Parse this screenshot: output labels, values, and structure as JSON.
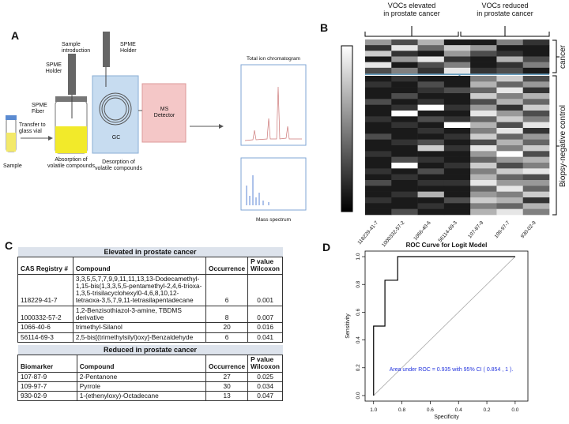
{
  "panel_a": {
    "label": "A",
    "sample": "Sample",
    "transfer": "Transfer to\nglass vial",
    "spme_fiber": "SPME\nFiber",
    "spme_holder_1": "SPME\nHolder",
    "sample_introduction": "Sample\nintroduction",
    "spme_holder_2": "SPME\nHolder",
    "absorption": "Absorption of\nvolatile compounds",
    "gc": "GC",
    "desorption": "Desorption of\nvolatile compounds",
    "ms_detector": "MS\nDetector",
    "chromatogram_title": "Total ion chromatogram",
    "mass_spectrum": "Mass spectrum"
  },
  "panel_b": {
    "label": "B",
    "elevated_header": "VOCs elevated\nin prostate cancer",
    "reduced_header": "VOCs reduced\nin prostate cancer",
    "cancer_label": "cancer",
    "control_label": "Biopsy-negative  control",
    "columns": [
      "118229-41-7",
      "1000332-57-2",
      "1066-40-6",
      "56114-69-3",
      "107-87-9",
      "109-97-7",
      "930-02-9"
    ],
    "cancer_rows": 6,
    "values": [
      [
        0.6,
        0.3,
        0.7,
        0.1,
        0.1,
        0.5,
        0.2
      ],
      [
        0.2,
        0.9,
        0.4,
        0.8,
        0.6,
        0.1,
        0.1
      ],
      [
        0.8,
        0.2,
        0.1,
        0.6,
        0.3,
        0.2,
        0.1
      ],
      [
        0.1,
        0.6,
        0.9,
        0.2,
        0.1,
        0.7,
        0.3
      ],
      [
        0.9,
        0.1,
        0.3,
        0.5,
        0.1,
        0.2,
        0.5
      ],
      [
        0.3,
        0.5,
        0.2,
        0.9,
        0.2,
        0.3,
        0.1
      ],
      [
        0.1,
        0.2,
        0.1,
        0.1,
        0.5,
        0.8,
        0.3
      ],
      [
        0.2,
        0.1,
        0.3,
        0.1,
        0.7,
        0.4,
        0.6
      ],
      [
        0.1,
        0.1,
        0.2,
        0.3,
        0.4,
        0.9,
        0.2
      ],
      [
        0.1,
        0.3,
        0.1,
        0.1,
        0.8,
        0.5,
        0.7
      ],
      [
        0.3,
        0.1,
        0.2,
        0.1,
        0.3,
        0.7,
        0.4
      ],
      [
        0.1,
        0.2,
        1.0,
        0.2,
        0.6,
        0.2,
        0.8
      ],
      [
        0.1,
        1.0,
        0.1,
        0.1,
        0.9,
        0.6,
        0.3
      ],
      [
        0.2,
        0.1,
        0.3,
        0.2,
        0.4,
        0.8,
        0.5
      ],
      [
        0.1,
        0.2,
        0.1,
        1.0,
        0.7,
        0.3,
        0.9
      ],
      [
        0.1,
        0.1,
        0.2,
        0.1,
        0.5,
        0.9,
        0.2
      ],
      [
        0.3,
        0.1,
        0.1,
        0.2,
        0.8,
        0.4,
        0.6
      ],
      [
        0.1,
        0.2,
        0.3,
        0.1,
        0.3,
        0.7,
        0.4
      ],
      [
        0.1,
        0.1,
        0.8,
        0.2,
        0.9,
        0.5,
        0.8
      ],
      [
        0.2,
        0.1,
        0.1,
        0.1,
        0.6,
        1.0,
        0.3
      ],
      [
        0.1,
        0.3,
        0.2,
        0.1,
        0.4,
        0.6,
        0.7
      ],
      [
        0.1,
        1.0,
        0.1,
        0.2,
        0.8,
        0.3,
        0.5
      ],
      [
        0.2,
        0.1,
        0.3,
        0.1,
        0.5,
        0.8,
        0.9
      ],
      [
        0.1,
        0.2,
        0.1,
        0.1,
        0.7,
        0.4,
        0.3
      ],
      [
        0.3,
        0.1,
        0.2,
        0.2,
        0.9,
        0.6,
        0.6
      ],
      [
        0.1,
        0.1,
        0.1,
        0.1,
        0.4,
        0.9,
        0.4
      ],
      [
        0.1,
        0.2,
        0.7,
        0.1,
        0.6,
        0.5,
        0.8
      ],
      [
        0.2,
        0.1,
        0.1,
        0.3,
        0.8,
        0.7,
        0.2
      ],
      [
        0.1,
        0.1,
        0.2,
        0.1,
        0.5,
        0.4,
        0.7
      ],
      [
        0.1,
        0.3,
        0.1,
        0.1,
        0.7,
        0.9,
        0.5
      ]
    ]
  },
  "panel_c": {
    "label": "C",
    "elevated": {
      "title": "Elevated  in prostate cancer",
      "header": [
        "CAS Registry #",
        "Compound",
        "Occurrence",
        "P value\nWilcoxon"
      ],
      "rows": [
        [
          "118229-41-7",
          "3,3,5,5,7,7,9,9,11,11,13,13-Dodecamethyl-1,15-bis(1,3,3,5,5-pentamethyl-2,4,6-trioxa-1,3,5-trisilacyclohexyl0-4,6,8,10,12-tetraoxa-3,5,7,9,11-tetrasilapentadecane",
          "6",
          "0.001"
        ],
        [
          "1000332-57-2",
          "1,2-Benzisothiazol-3-amine, TBDMS derivative",
          "8",
          "0.007"
        ],
        [
          "1066-40-6",
          "trimethyl-Silanol",
          "20",
          "0.016"
        ],
        [
          "56114-69-3",
          "2,5-bis[(trimethylsilyl)oxy]-Benzaldehyde",
          "6",
          "0.041"
        ]
      ]
    },
    "reduced": {
      "title": "Reduced in prostate cancer",
      "header": [
        "Biomarker",
        "Compound",
        "Occurrence",
        "P value\nWilcoxon"
      ],
      "rows": [
        [
          "107-87-9",
          "2-Pentanone",
          "27",
          "0.025"
        ],
        [
          "109-97-7",
          "Pyrrole",
          "30",
          "0.034"
        ],
        [
          "930-02-9",
          "1-(ethenyloxy)-Octadecane",
          "13",
          "0.047"
        ]
      ]
    }
  },
  "panel_d": {
    "label": "D",
    "title": "ROC Curve for Logit Model",
    "xlabel": "Specificity",
    "ylabel": "Sensitivity",
    "annotation": "Area under ROC = 0.935 with 95% CI ( 0.854 , 1 ).",
    "xlim": [
      1.06,
      -0.09
    ],
    "ylim": [
      -0.04,
      1.04
    ],
    "xticks": [
      {
        "value": 1,
        "label": "1.0"
      },
      {
        "value": 0.8,
        "label": "0.8"
      },
      {
        "value": 0.6,
        "label": "0.6"
      },
      {
        "value": 0.4,
        "label": "0.4"
      },
      {
        "value": 0.2,
        "label": "0.2"
      },
      {
        "value": 0,
        "label": "0.0"
      }
    ],
    "yticks": [
      {
        "value": 0,
        "label": "0.0"
      },
      {
        "value": 0.2,
        "label": "0.2"
      },
      {
        "value": 0.4,
        "label": "0.4"
      },
      {
        "value": 0.6,
        "label": "0.6"
      },
      {
        "value": 0.8,
        "label": "0.8"
      },
      {
        "value": 1,
        "label": "1.0"
      }
    ],
    "roc": {
      "specificity": [
        1,
        1,
        0.92,
        0.92,
        0.83,
        0.83,
        0
      ],
      "sensitivity": [
        0,
        0.5,
        0.5,
        0.83,
        0.83,
        1,
        1
      ]
    }
  }
}
